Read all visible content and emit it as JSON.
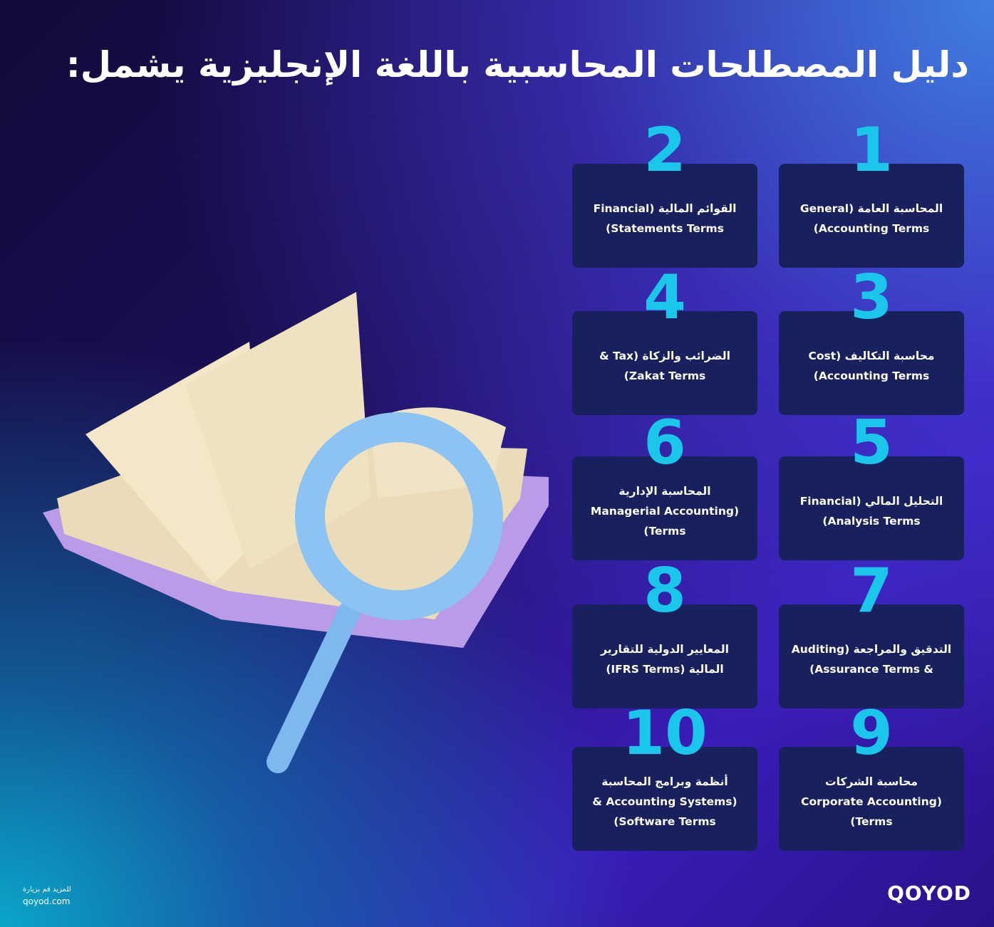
{
  "title": "دليل المصطلحات المحاسبية باللغة الإنجليزية يشمل:",
  "items": [
    {
      "number": "1",
      "line1": "المحاسبة العامة (General",
      "line2": "Accounting Terms)"
    },
    {
      "number": "2",
      "line1": "القوائم المالية (Financial",
      "line2": "Statements Terms)"
    },
    {
      "number": "3",
      "line1": "محاسبة التكاليف (Cost",
      "line2": "Accounting Terms)"
    },
    {
      "number": "4",
      "line1": "الضرائب والزكاة (Tax &",
      "line2": "Zakat Terms)"
    },
    {
      "number": "5",
      "line1": "التحليل المالي (Financial",
      "line2": "Analysis Terms)"
    },
    {
      "number": "6",
      "line1": "المحاسبة الإدارية",
      "line2": "(Managerial Accounting",
      "line3": "Terms)"
    },
    {
      "number": "7",
      "line1": "التدقيق والمراجعة (Auditing",
      "line2": "& Assurance Terms)"
    },
    {
      "number": "8",
      "line1": "المعايير الدولية للتقارير",
      "line2": "المالية (IFRS Terms)"
    },
    {
      "number": "9",
      "line1": "محاسبة الشركات",
      "line2": "(Corporate Accounting",
      "line3": "Terms)"
    },
    {
      "number": "10",
      "line1": "أنظمة وبرامج المحاسبة",
      "line2": "(Accounting Systems &",
      "line3": "Software Terms)"
    }
  ],
  "footer": {
    "visit_text": "للمزيد قم بزيارة",
    "url": "qoyod.com"
  },
  "logo": "QOYOD",
  "colors": {
    "number": "#1ac6ea",
    "card": "#18205e"
  }
}
